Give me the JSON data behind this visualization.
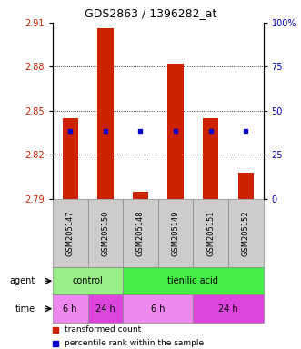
{
  "title": "GDS2863 / 1396282_at",
  "samples": [
    "GSM205147",
    "GSM205150",
    "GSM205148",
    "GSM205149",
    "GSM205151",
    "GSM205152"
  ],
  "bar_bottoms": [
    2.79,
    2.79,
    2.79,
    2.79,
    2.79,
    2.79
  ],
  "bar_tops": [
    2.845,
    2.906,
    2.795,
    2.882,
    2.845,
    2.808
  ],
  "percentile_values": [
    2.836,
    2.836,
    2.836,
    2.836,
    2.836,
    2.836
  ],
  "ylim": [
    2.79,
    2.91
  ],
  "yticks_left": [
    2.79,
    2.82,
    2.85,
    2.88,
    2.91
  ],
  "yticks_right_pct": [
    0,
    25,
    50,
    75,
    100
  ],
  "bar_color": "#cc2200",
  "percentile_color": "#0000cc",
  "bar_color_edge": "none",
  "agent_groups": [
    {
      "label": "control",
      "start": 0,
      "end": 2,
      "color": "#99ee88"
    },
    {
      "label": "tienilic acid",
      "start": 2,
      "end": 6,
      "color": "#44ee44"
    }
  ],
  "time_groups": [
    {
      "label": "6 h",
      "start": 0,
      "end": 1,
      "color": "#ee88ee"
    },
    {
      "label": "24 h",
      "start": 1,
      "end": 2,
      "color": "#dd44dd"
    },
    {
      "label": "6 h",
      "start": 2,
      "end": 4,
      "color": "#ee88ee"
    },
    {
      "label": "24 h",
      "start": 4,
      "end": 6,
      "color": "#dd44dd"
    }
  ],
  "legend_items": [
    {
      "label": "transformed count",
      "color": "#cc2200"
    },
    {
      "label": "percentile rank within the sample",
      "color": "#0000cc"
    }
  ],
  "left_tick_color": "#cc2200",
  "right_tick_color": "#0000bb",
  "title_fontsize": 9,
  "tick_fontsize": 7,
  "label_fontsize": 7,
  "bar_width": 0.45,
  "sample_box_color": "#cccccc",
  "sample_box_edge": "#888888"
}
